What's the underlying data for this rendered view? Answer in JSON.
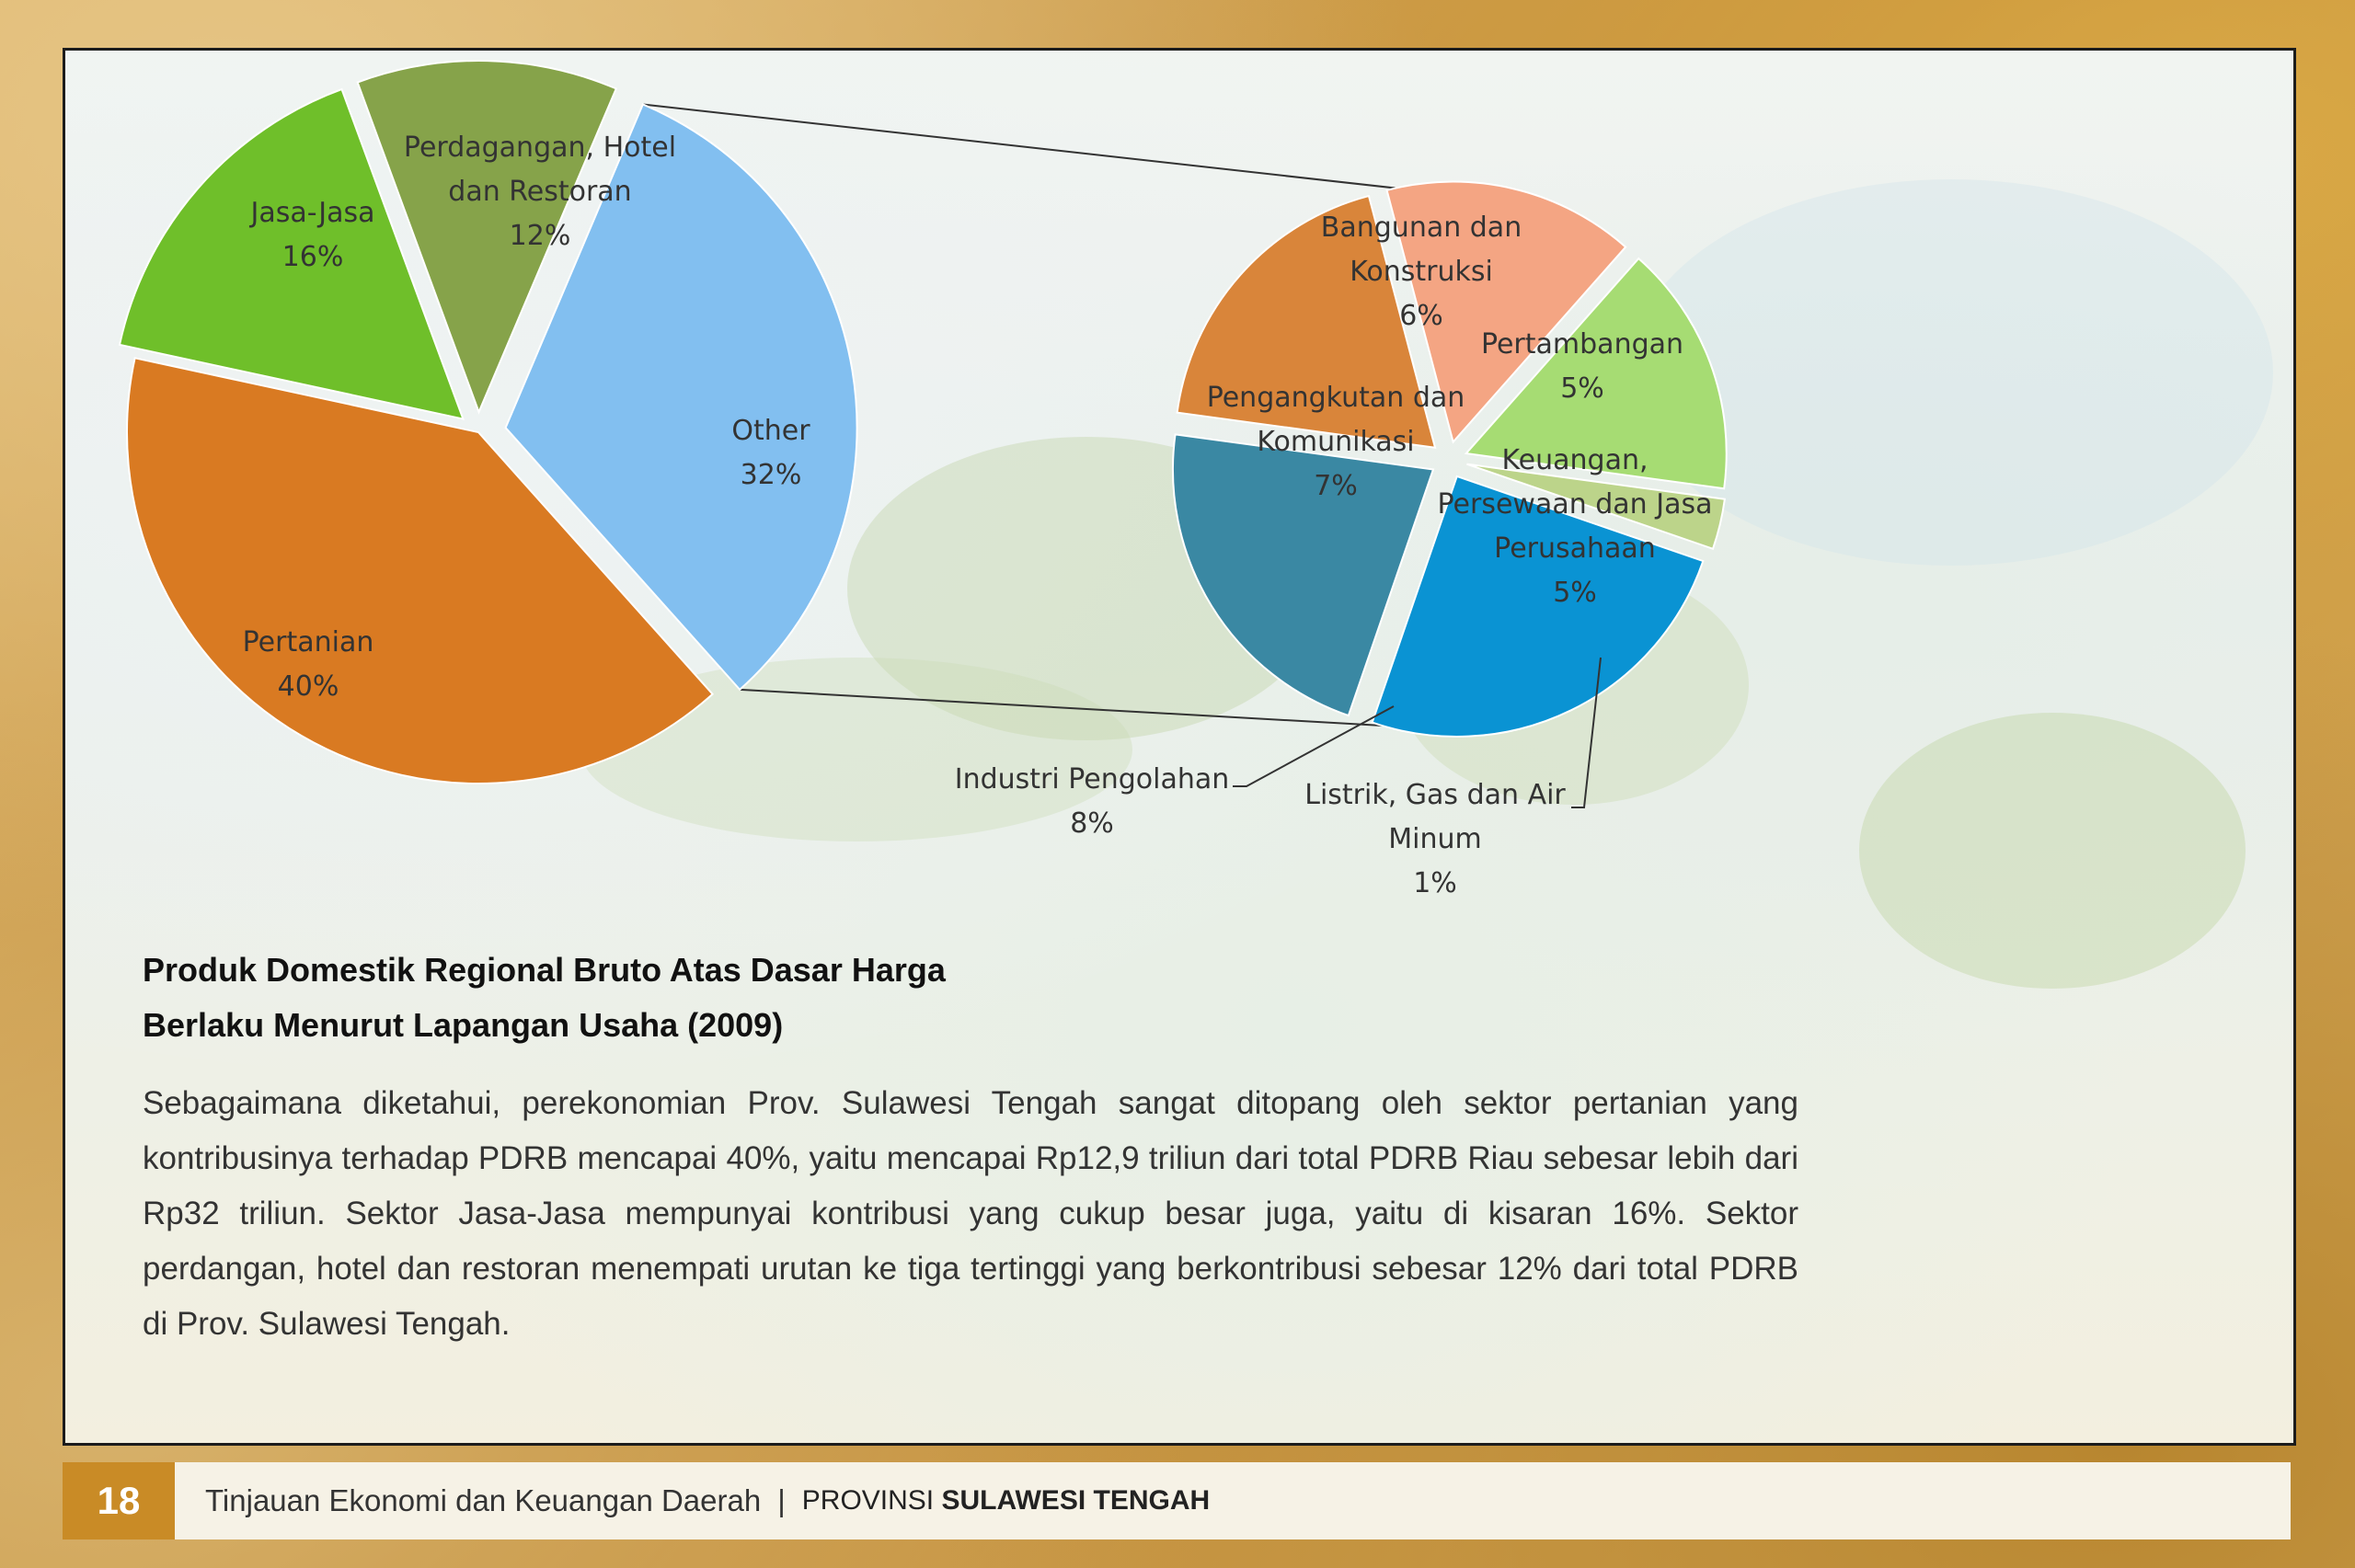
{
  "chart_data": [
    {
      "type": "pie",
      "title": "",
      "slices": [
        {
          "label": "Pertanian",
          "value": 40,
          "value_label": "40%",
          "color": "#d97a22"
        },
        {
          "label": "Jasa-Jasa",
          "value": 16,
          "value_label": "16%",
          "color": "#6fbf2a"
        },
        {
          "label": "Perdagangan, Hotel dan Restoran",
          "value": 12,
          "value_label": "12%",
          "color": "#86a34a"
        },
        {
          "label": "Other",
          "value": 32,
          "value_label": "32%",
          "color": "#82bff0"
        }
      ]
    },
    {
      "type": "pie",
      "title": "",
      "breakdown_of": "Other",
      "slices": [
        {
          "label": "Industri Pengolahan",
          "value": 8,
          "value_label": "8%",
          "color": "#0a93d3"
        },
        {
          "label": "Pengangkutan dan Komunikasi",
          "value": 7,
          "value_label": "7%",
          "color": "#3a88a3"
        },
        {
          "label": "Bangunan dan Konstruksi",
          "value": 6,
          "value_label": "6%",
          "color": "#d9853a"
        },
        {
          "label": "Pertambangan",
          "value": 5,
          "value_label": "5%",
          "color": "#f4a583"
        },
        {
          "label": "Keuangan, Persewaan dan Jasa Perusahaan",
          "value": 5,
          "value_label": "5%",
          "color": "#a6dc73"
        },
        {
          "label": "Listrik, Gas dan Air Minum",
          "value": 1,
          "value_label": "1%",
          "color": "#bcd48a"
        }
      ]
    }
  ],
  "labels": {
    "pertanian": [
      "Pertanian",
      "40%"
    ],
    "jasa": [
      "Jasa-Jasa",
      "16%"
    ],
    "perdagangan": [
      "Perdagangan, Hotel",
      "dan Restoran",
      "12%"
    ],
    "other": [
      "Other",
      "32%"
    ],
    "bangunan": [
      "Bangunan dan",
      "Konstruksi",
      "6%"
    ],
    "pertambangan": [
      "Pertambangan",
      "5%"
    ],
    "pengangkutan": [
      "Pengangkutan dan",
      "Komunikasi",
      "7%"
    ],
    "keuangan": [
      "Keuangan,",
      "Persewaan dan Jasa",
      "Perusahaan",
      "5%"
    ],
    "industri": [
      "Industri Pengolahan",
      "8%"
    ],
    "listrik": [
      "Listrik, Gas dan Air",
      "Minum",
      "1%"
    ]
  },
  "heading": {
    "line1": "Produk Domestik Regional Bruto Atas Dasar Harga",
    "line2": "Berlaku Menurut Lapangan Usaha (2009)"
  },
  "body": "Sebagaimana diketahui, perekonomian Prov. Sulawesi Tengah sangat ditopang oleh sektor pertanian yang kontribusinya terhadap PDRB mencapai 40%, yaitu mencapai Rp12,9 triliun dari total PDRB Riau sebesar lebih dari Rp32 triliun. Sektor Jasa-Jasa mempunyai kontribusi yang cukup besar juga, yaitu di kisaran 16%. Sektor perdangan, hotel dan restoran menempati urutan ke tiga tertinggi yang berkontribusi sebesar 12% dari total PDRB di Prov. Sulawesi Tengah.",
  "footer": {
    "page_number": "18",
    "title": "Tinjauan Ekonomi dan Keuangan Daerah",
    "separator": "|",
    "prov_prefix": "PROVINSI",
    "prov_name": "SULAWESI TENGAH"
  },
  "colors": {
    "footer_accent": "#c98b26",
    "frame": "#1c1c1c"
  }
}
